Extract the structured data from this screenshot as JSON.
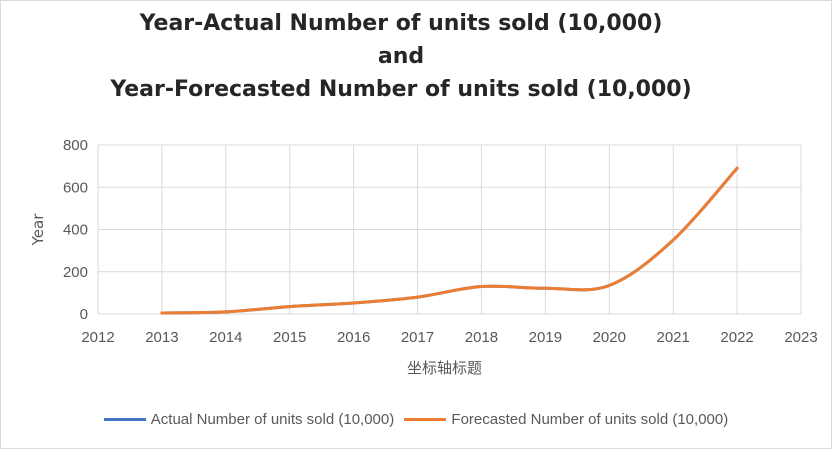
{
  "chart_data": {
    "type": "line",
    "title": [
      "Year-Actual Number of units sold (10,000)",
      "and",
      "Year-Forecasted Number of units sold (10,000)"
    ],
    "xlabel": "坐标轴标题",
    "ylabel": "Year",
    "xlim": [
      2012,
      2023
    ],
    "ylim": [
      0,
      800
    ],
    "xticks": [
      2012,
      2013,
      2014,
      2015,
      2016,
      2017,
      2018,
      2019,
      2020,
      2021,
      2022,
      2023
    ],
    "yticks": [
      0,
      200,
      400,
      600,
      800
    ],
    "grid": true,
    "legend_position": "bottom",
    "series": [
      {
        "name": "Actual Number of units sold (10,000)",
        "color": "#4472c4",
        "x": [
          2013,
          2014,
          2015,
          2016,
          2017,
          2018,
          2019,
          2020,
          2021,
          2022
        ],
        "values": [
          5,
          10,
          35,
          52,
          80,
          130,
          122,
          135,
          350,
          690
        ]
      },
      {
        "name": "Forecasted Number of units sold (10,000)",
        "color": "#ed7d31",
        "x": [
          2013,
          2014,
          2015,
          2016,
          2017,
          2018,
          2019,
          2020,
          2021,
          2022
        ],
        "values": [
          5,
          10,
          35,
          52,
          80,
          130,
          122,
          135,
          350,
          690
        ]
      }
    ]
  }
}
